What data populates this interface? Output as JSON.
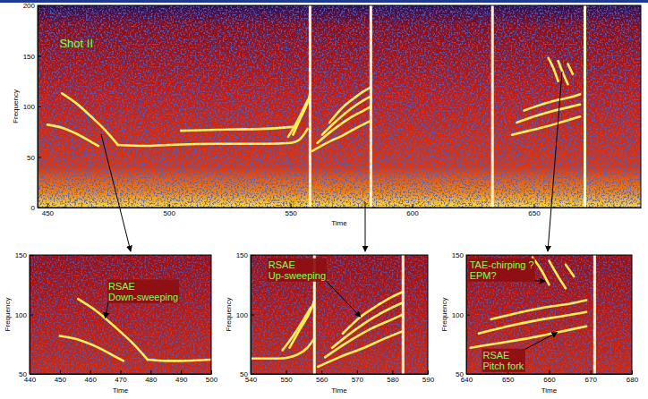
{
  "chart_data": [
    {
      "type": "spectrogram",
      "xlabel": "Time",
      "ylabel": "Frequency",
      "color": "#ffee55",
      "xlim": [
        446,
        694
      ],
      "ylim": [
        0,
        200
      ],
      "xticks": [
        450,
        500,
        550,
        600,
        650
      ],
      "yticks": [
        0,
        50,
        100,
        150,
        200
      ],
      "annotations": [
        {
          "text": [
            "Shot II"
          ],
          "x": 455,
          "y": 168
        }
      ],
      "bursts": [
        558,
        583,
        633,
        671
      ],
      "series": [
        {
          "x": [
            450,
            456,
            462,
            468,
            471
          ],
          "y": [
            82,
            79,
            73,
            65,
            61
          ]
        },
        {
          "x": [
            456,
            462,
            468,
            474,
            479
          ],
          "y": [
            113,
            103,
            90,
            76,
            62
          ]
        },
        {
          "x": [
            479,
            490,
            500,
            520,
            540,
            550,
            554,
            557
          ],
          "y": [
            62,
            61,
            62,
            63,
            63,
            64,
            68,
            78
          ]
        },
        {
          "x": [
            505,
            520,
            540,
            552
          ],
          "y": [
            76,
            77,
            78,
            80
          ]
        },
        {
          "x": [
            549,
            552,
            555,
            557
          ],
          "y": [
            70,
            82,
            96,
            106
          ]
        },
        {
          "x": [
            551,
            554,
            557,
            558
          ],
          "y": [
            72,
            88,
            104,
            112
          ]
        },
        {
          "x": [
            559,
            565,
            572,
            578,
            583
          ],
          "y": [
            56,
            64,
            72,
            80,
            86
          ]
        },
        {
          "x": [
            561,
            567,
            574,
            580,
            583
          ],
          "y": [
            64,
            76,
            88,
            96,
            100
          ]
        },
        {
          "x": [
            563,
            569,
            575,
            580,
            583
          ],
          "y": [
            72,
            86,
            98,
            106,
            110
          ]
        },
        {
          "x": [
            566,
            571,
            576,
            580,
            583
          ],
          "y": [
            84,
            98,
            108,
            115,
            119
          ]
        },
        {
          "x": [
            641,
            648,
            655,
            662,
            669
          ],
          "y": [
            72,
            76,
            80,
            85,
            90
          ]
        },
        {
          "x": [
            643,
            650,
            657,
            664,
            669
          ],
          "y": [
            84,
            90,
            95,
            99,
            102
          ]
        },
        {
          "x": [
            646,
            652,
            659,
            665,
            669
          ],
          "y": [
            96,
            101,
            106,
            109,
            112
          ]
        },
        {
          "x": [
            656,
            658,
            660
          ],
          "y": [
            148,
            138,
            125
          ]
        },
        {
          "x": [
            660,
            662,
            664
          ],
          "y": [
            145,
            133,
            122
          ]
        },
        {
          "x": [
            664,
            666
          ],
          "y": [
            142,
            132
          ]
        }
      ]
    },
    {
      "type": "spectrogram",
      "xlabel": "Time",
      "ylabel": "Frequency",
      "color": "#ffee55",
      "xlim": [
        440,
        500
      ],
      "ylim": [
        50,
        150
      ],
      "xticks": [
        440,
        450,
        460,
        470,
        480,
        490,
        500
      ],
      "yticks": [
        50,
        100,
        150
      ],
      "annotations": [
        {
          "text": [
            "RSAE",
            "Down-sweeping"
          ],
          "x": 466,
          "y": 128,
          "target": [
            465,
            97
          ]
        }
      ],
      "series": [
        {
          "x": [
            450,
            456,
            462,
            468,
            471
          ],
          "y": [
            82,
            79,
            73,
            65,
            61
          ]
        },
        {
          "x": [
            456,
            462,
            468,
            474,
            479
          ],
          "y": [
            113,
            103,
            90,
            76,
            62
          ]
        },
        {
          "x": [
            479,
            485,
            490,
            500
          ],
          "y": [
            62,
            61,
            61,
            62
          ]
        }
      ]
    },
    {
      "type": "spectrogram",
      "xlabel": "Time",
      "ylabel": "Frequency",
      "color": "#ffee55",
      "xlim": [
        540,
        590
      ],
      "ylim": [
        50,
        150
      ],
      "xticks": [
        540,
        550,
        560,
        570,
        580,
        590
      ],
      "yticks": [
        50,
        100,
        150
      ],
      "annotations": [
        {
          "text": [
            "RSAE",
            "Up-sweeping"
          ],
          "x": 545,
          "y": 146,
          "target": [
            571,
            98
          ]
        }
      ],
      "bursts": [
        558,
        583
      ],
      "series": [
        {
          "x": [
            540,
            548,
            553,
            556,
            558
          ],
          "y": [
            63,
            63,
            66,
            72,
            80
          ]
        },
        {
          "x": [
            549,
            552,
            555,
            557
          ],
          "y": [
            70,
            82,
            96,
            106
          ]
        },
        {
          "x": [
            551,
            554,
            557,
            558
          ],
          "y": [
            72,
            88,
            104,
            112
          ]
        },
        {
          "x": [
            559,
            565,
            572,
            578,
            583
          ],
          "y": [
            56,
            64,
            72,
            80,
            86
          ]
        },
        {
          "x": [
            561,
            567,
            574,
            580,
            583
          ],
          "y": [
            64,
            76,
            88,
            96,
            100
          ]
        },
        {
          "x": [
            563,
            569,
            575,
            580,
            583
          ],
          "y": [
            72,
            86,
            98,
            106,
            110
          ]
        },
        {
          "x": [
            566,
            571,
            576,
            580,
            583
          ],
          "y": [
            84,
            98,
            108,
            115,
            119
          ]
        }
      ]
    },
    {
      "type": "spectrogram",
      "xlabel": "Time",
      "ylabel": "Frequency",
      "color": "#ffee55",
      "xlim": [
        640,
        680
      ],
      "ylim": [
        50,
        150
      ],
      "xticks": [
        640,
        650,
        660,
        670,
        680
      ],
      "yticks": [
        50,
        100,
        150
      ],
      "annotations": [
        {
          "text": [
            "TAE-chirping ?",
            "EPM?"
          ],
          "x": 640.8,
          "y": 146,
          "target": [
            659,
            128
          ]
        },
        {
          "text": [
            "RSAE",
            "Pitch fork"
          ],
          "x": 644,
          "y": 70,
          "target": [
            662,
            85
          ]
        }
      ],
      "bursts": [
        671
      ],
      "series": [
        {
          "x": [
            641,
            648,
            655,
            662,
            669
          ],
          "y": [
            72,
            76,
            80,
            85,
            90
          ]
        },
        {
          "x": [
            643,
            650,
            657,
            664,
            669
          ],
          "y": [
            84,
            90,
            95,
            99,
            102
          ]
        },
        {
          "x": [
            646,
            652,
            659,
            665,
            669
          ],
          "y": [
            96,
            101,
            106,
            109,
            112
          ]
        },
        {
          "x": [
            656,
            658,
            660
          ],
          "y": [
            148,
            138,
            125
          ]
        },
        {
          "x": [
            660,
            662,
            664
          ],
          "y": [
            145,
            133,
            122
          ]
        },
        {
          "x": [
            664,
            666
          ],
          "y": [
            142,
            132
          ]
        }
      ]
    }
  ]
}
